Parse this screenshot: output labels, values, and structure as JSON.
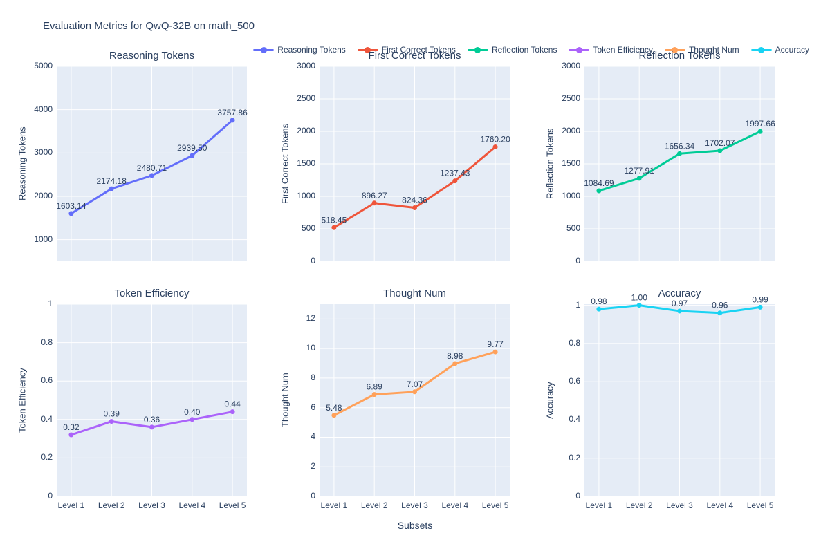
{
  "figure": {
    "title": "Evaluation Metrics for QwQ-32B on math_500",
    "x_axis_label": "Subsets",
    "categories": [
      "Level 1",
      "Level 2",
      "Level 3",
      "Level 4",
      "Level 5"
    ],
    "plot_bgcolor": "#E5ECF6",
    "grid_color": "#FFFFFF",
    "text_color": "#2a3f5f"
  },
  "legend": {
    "position": "top-right",
    "items": [
      {
        "label": "Reasoning Tokens",
        "color": "#636EFA"
      },
      {
        "label": "First Correct Tokens",
        "color": "#EF553B"
      },
      {
        "label": "Reflection Tokens",
        "color": "#00CC96"
      },
      {
        "label": "Token Efficiency",
        "color": "#AB63FA"
      },
      {
        "label": "Thought Num",
        "color": "#FFA15A"
      },
      {
        "label": "Accuracy",
        "color": "#19D3F3"
      }
    ]
  },
  "chart_data": [
    {
      "type": "line",
      "title": "Reasoning Tokens",
      "ylabel": "Reasoning Tokens",
      "color": "#636EFA",
      "grid": true,
      "legend_position": "top",
      "categories": [
        "Level 1",
        "Level 2",
        "Level 3",
        "Level 4",
        "Level 5"
      ],
      "values": [
        1603.14,
        2174.18,
        2480.71,
        2939.5,
        3757.86
      ],
      "labels": [
        "1603.14",
        "2174.18",
        "2480.71",
        "2939.50",
        "3757.86"
      ],
      "yticks": [
        1000,
        2000,
        3000,
        4000,
        5000
      ],
      "ylim": [
        500,
        5000
      ],
      "show_x_ticks": false
    },
    {
      "type": "line",
      "title": "First Correct Tokens",
      "ylabel": "First Correct Tokens",
      "color": "#EF553B",
      "grid": true,
      "categories": [
        "Level 1",
        "Level 2",
        "Level 3",
        "Level 4",
        "Level 5"
      ],
      "values": [
        518.45,
        896.27,
        824.36,
        1237.43,
        1760.2
      ],
      "labels": [
        "518.45",
        "896.27",
        "824.36",
        "1237.43",
        "1760.20"
      ],
      "yticks": [
        0,
        500,
        1000,
        1500,
        2000,
        2500,
        3000
      ],
      "ylim": [
        0,
        3000
      ],
      "show_x_ticks": false
    },
    {
      "type": "line",
      "title": "Reflection Tokens",
      "ylabel": "Reflection Tokens",
      "color": "#00CC96",
      "grid": true,
      "categories": [
        "Level 1",
        "Level 2",
        "Level 3",
        "Level 4",
        "Level 5"
      ],
      "values": [
        1084.69,
        1277.91,
        1656.34,
        1702.07,
        1997.66
      ],
      "labels": [
        "1084.69",
        "1277.91",
        "1656.34",
        "1702.07",
        "1997.66"
      ],
      "yticks": [
        0,
        500,
        1000,
        1500,
        2000,
        2500,
        3000
      ],
      "ylim": [
        0,
        3000
      ],
      "show_x_ticks": false
    },
    {
      "type": "line",
      "title": "Token Efficiency",
      "ylabel": "Token Efficiency",
      "color": "#AB63FA",
      "grid": true,
      "categories": [
        "Level 1",
        "Level 2",
        "Level 3",
        "Level 4",
        "Level 5"
      ],
      "values": [
        0.32,
        0.39,
        0.36,
        0.4,
        0.44
      ],
      "labels": [
        "0.32",
        "0.39",
        "0.36",
        "0.40",
        "0.44"
      ],
      "yticks": [
        0,
        0.2,
        0.4,
        0.6,
        0.8,
        1
      ],
      "ylim": [
        0,
        1
      ],
      "show_x_ticks": true
    },
    {
      "type": "line",
      "title": "Thought Num",
      "ylabel": "Thought Num",
      "color": "#FFA15A",
      "grid": true,
      "categories": [
        "Level 1",
        "Level 2",
        "Level 3",
        "Level 4",
        "Level 5"
      ],
      "values": [
        5.48,
        6.89,
        7.07,
        8.98,
        9.77
      ],
      "labels": [
        "5.48",
        "6.89",
        "7.07",
        "8.98",
        "9.77"
      ],
      "yticks": [
        0,
        2,
        4,
        6,
        8,
        10,
        12
      ],
      "ylim": [
        0,
        13
      ],
      "show_x_ticks": true
    },
    {
      "type": "line",
      "title": "Accuracy",
      "ylabel": "Accuracy",
      "color": "#19D3F3",
      "grid": true,
      "categories": [
        "Level 1",
        "Level 2",
        "Level 3",
        "Level 4",
        "Level 5"
      ],
      "values": [
        0.98,
        1.0,
        0.97,
        0.96,
        0.99
      ],
      "labels": [
        "0.98",
        "1.00",
        "0.97",
        "0.96",
        "0.99"
      ],
      "yticks": [
        0,
        0.2,
        0.4,
        0.6,
        0.8,
        1
      ],
      "ylim": [
        0,
        1.006
      ],
      "show_x_ticks": true
    }
  ]
}
